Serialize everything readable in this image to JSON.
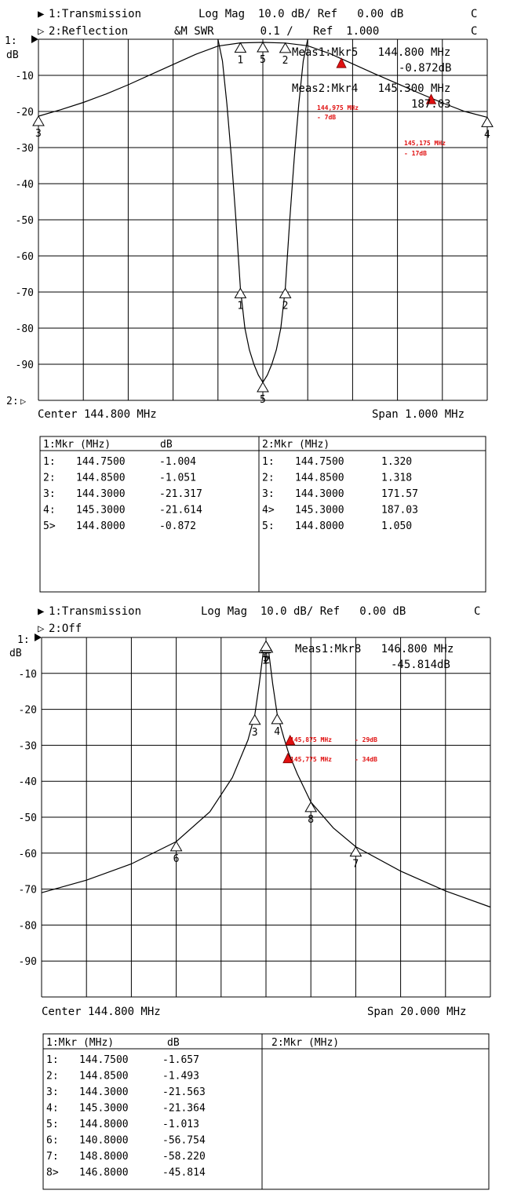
{
  "plots": [
    {
      "header": [
        {
          "marker": "▶",
          "text": "1:Transmission",
          "scale": "Log Mag  10.0 dB/ Ref   0.00 dB",
          "flag": "C"
        },
        {
          "marker": "▷",
          "text": "2:Reflection",
          "scale": "&M SWR       0.1 /   Ref  1.000",
          "flag": "C"
        }
      ],
      "unit": "dB",
      "ref_label_1": "1:",
      "ref_label_2": "2:",
      "ref_marker_1": "▶",
      "ref_marker_2": "▷",
      "center_label": "Center 144.800 MHz",
      "span_label": "Span 1.000 MHz",
      "readouts": [
        {
          "line1": "Meas1:Mkr5   144.800 MHz",
          "line2": "-0.872dB"
        },
        {
          "line1": "Meas2:Mkr4   145.300 MHz",
          "line2": "187.03"
        }
      ],
      "annotations": [
        {
          "freq": "144,975 MHz",
          "level": "- 7dB"
        },
        {
          "freq": "145,175 MHz",
          "level": "- 17dB"
        }
      ],
      "marker_table": {
        "left_header": [
          "1:Mkr (MHz)",
          "dB"
        ],
        "left_rows": [
          [
            "1:",
            "144.7500",
            "-1.004"
          ],
          [
            "2:",
            "144.8500",
            "-1.051"
          ],
          [
            "3:",
            "144.3000",
            "-21.317"
          ],
          [
            "4:",
            "145.3000",
            "-21.614"
          ],
          [
            "5>",
            "144.8000",
            "-0.872"
          ]
        ],
        "right_header": [
          "2:Mkr (MHz)",
          ""
        ],
        "right_rows": [
          [
            "1:",
            "144.7500",
            "1.320"
          ],
          [
            "2:",
            "144.8500",
            "1.318"
          ],
          [
            "3:",
            "144.3000",
            "171.57"
          ],
          [
            "4>",
            "145.3000",
            "187.03"
          ],
          [
            "5:",
            "144.8000",
            "1.050"
          ]
        ]
      }
    },
    {
      "header": [
        {
          "marker": "▶",
          "text": "1:Transmission",
          "scale": "Log Mag  10.0 dB/ Ref   0.00 dB",
          "flag": "C"
        },
        {
          "marker": "▷",
          "text": "2:Off",
          "scale": "",
          "flag": ""
        }
      ],
      "unit": "dB",
      "ref_label_1": "1:",
      "ref_marker_1": "▶",
      "center_label": "Center 144.800 MHz",
      "span_label": "Span 20.000 MHz",
      "readouts": [
        {
          "line1": "Meas1:Mkr8   146.800 MHz",
          "line2": "-45.814dB"
        }
      ],
      "annotations": [
        {
          "freq": "145,875 MHz",
          "level": "- 29dB"
        },
        {
          "freq": "145,775 MHz",
          "level": "- 34dB"
        }
      ],
      "marker_table": {
        "left_header": [
          "1:Mkr (MHz)",
          "dB"
        ],
        "left_rows": [
          [
            "1:",
            "144.7500",
            "-1.657"
          ],
          [
            "2:",
            "144.8500",
            "-1.493"
          ],
          [
            "3:",
            "144.3000",
            "-21.563"
          ],
          [
            "4:",
            "145.3000",
            "-21.364"
          ],
          [
            "5:",
            "144.8000",
            "-1.013"
          ],
          [
            "6:",
            "140.8000",
            "-56.754"
          ],
          [
            "7:",
            "148.8000",
            "-58.220"
          ],
          [
            "8>",
            "146.8000",
            "-45.814"
          ]
        ],
        "right_header": [
          "2:Mkr (MHz)",
          ""
        ],
        "right_rows": []
      }
    }
  ],
  "chart_data": [
    {
      "type": "line",
      "xlabel": "",
      "ylabel": "dB",
      "x_center_mhz": 144.8,
      "x_span_mhz": 1.0,
      "xlim": [
        144.3,
        145.3
      ],
      "ylim": [
        -100,
        0
      ],
      "y_ticks": [
        "-10",
        "-20",
        "-30",
        "-40",
        "-50",
        "-60",
        "-70",
        "-80",
        "-90"
      ],
      "grid": true,
      "series": [
        {
          "name": "1:Transmission",
          "color": "#000000",
          "x": [
            144.3,
            144.35,
            144.4,
            144.45,
            144.5,
            144.55,
            144.6,
            144.65,
            144.7,
            144.75,
            144.8,
            144.85,
            144.9,
            144.95,
            145.0,
            145.05,
            145.1,
            145.15,
            145.2,
            145.25,
            145.3
          ],
          "y": [
            -21.3,
            -19.5,
            -17.5,
            -15.2,
            -12.6,
            -9.8,
            -7.0,
            -4.2,
            -1.9,
            -1.0,
            -0.87,
            -1.05,
            -1.8,
            -4.0,
            -6.8,
            -9.6,
            -12.3,
            -15.0,
            -17.6,
            -20.0,
            -21.6
          ]
        },
        {
          "name": "2:Reflection",
          "color": "#000000",
          "x": [
            144.7,
            144.71,
            144.72,
            144.73,
            144.74,
            144.75,
            144.76,
            144.77,
            144.78,
            144.79,
            144.8,
            144.81,
            144.82,
            144.83,
            144.84,
            144.85,
            144.86,
            144.87,
            144.88,
            144.89,
            144.9
          ],
          "y": [
            0,
            -6,
            -18,
            -33,
            -50,
            -69,
            -80,
            -86,
            -90,
            -93,
            -95,
            -93,
            -90,
            -86,
            -80,
            -69,
            -50,
            -33,
            -18,
            -6,
            0
          ]
        }
      ],
      "markers": [
        {
          "id": "1",
          "trace": 1,
          "x": 144.75,
          "y": -1.004
        },
        {
          "id": "2",
          "trace": 1,
          "x": 144.85,
          "y": -1.051
        },
        {
          "id": "3",
          "trace": 1,
          "x": 144.3,
          "y": -21.317
        },
        {
          "id": "4",
          "trace": 1,
          "x": 145.3,
          "y": -21.614
        },
        {
          "id": "5",
          "trace": 1,
          "x": 144.8,
          "y": -0.872
        },
        {
          "id": "1",
          "trace": 2,
          "x": 144.75,
          "y": -69
        },
        {
          "id": "2",
          "trace": 2,
          "x": 144.85,
          "y": -69
        },
        {
          "id": "5",
          "trace": 2,
          "x": 144.8,
          "y": -95
        }
      ],
      "highlights": [
        {
          "x": 144.975,
          "y": -7
        },
        {
          "x": 145.175,
          "y": -17
        }
      ]
    },
    {
      "type": "line",
      "xlabel": "",
      "ylabel": "dB",
      "x_center_mhz": 144.8,
      "x_span_mhz": 20.0,
      "xlim": [
        134.8,
        154.8
      ],
      "ylim": [
        -100,
        0
      ],
      "y_ticks": [
        "-10",
        "-20",
        "-30",
        "-40",
        "-50",
        "-60",
        "-70",
        "-80",
        "-90"
      ],
      "grid": true,
      "series": [
        {
          "name": "1:Transmission",
          "color": "#000000",
          "x": [
            134.8,
            136.8,
            138.8,
            140.8,
            142.3,
            143.3,
            144.0,
            144.3,
            144.5,
            144.7,
            144.8,
            144.9,
            145.1,
            145.3,
            145.6,
            145.8,
            146.2,
            146.8,
            147.8,
            148.8,
            150.8,
            152.8,
            154.8
          ],
          "y": [
            -71.0,
            -67.5,
            -63.0,
            -56.8,
            -48.5,
            -39.0,
            -28.5,
            -21.6,
            -13.0,
            -3.0,
            -1.0,
            -3.0,
            -13.0,
            -21.4,
            -28.0,
            -32.0,
            -38.0,
            -45.8,
            -53.0,
            -58.2,
            -65.0,
            -70.5,
            -75.0
          ]
        }
      ],
      "markers": [
        {
          "id": "1",
          "trace": 1,
          "x": 144.75,
          "y": -1.657
        },
        {
          "id": "2",
          "trace": 1,
          "x": 144.85,
          "y": -1.493
        },
        {
          "id": "3",
          "trace": 1,
          "x": 144.3,
          "y": -21.563
        },
        {
          "id": "4",
          "trace": 1,
          "x": 145.3,
          "y": -21.364
        },
        {
          "id": "5",
          "trace": 1,
          "x": 144.8,
          "y": -1.013
        },
        {
          "id": "6",
          "trace": 1,
          "x": 140.8,
          "y": -56.754
        },
        {
          "id": "7",
          "trace": 1,
          "x": 148.8,
          "y": -58.22
        },
        {
          "id": "8",
          "trace": 1,
          "x": 146.8,
          "y": -45.814
        }
      ],
      "highlights": [
        {
          "x": 145.875,
          "y": -29
        },
        {
          "x": 145.775,
          "y": -34
        }
      ]
    }
  ]
}
